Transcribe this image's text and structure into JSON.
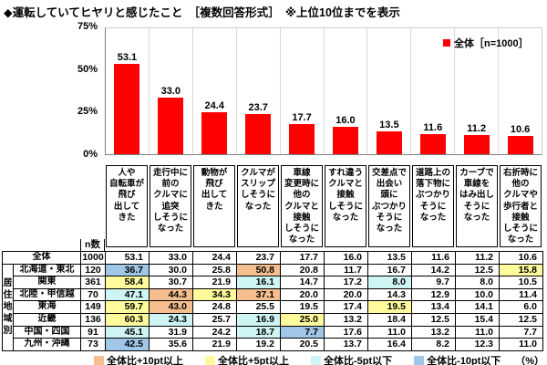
{
  "title": "◆運転していてヒヤリと感じたこと　［複数回答形式］　※上位10位までを表示",
  "chart_data": {
    "type": "bar",
    "title": "運転していてヒヤリと感じたこと ［複数回答形式］ 上位10位",
    "legend": "全体［n=1000］",
    "bar_color": "#ff0000",
    "ylim": [
      0,
      75
    ],
    "yticks": [
      {
        "label": "75%",
        "value": 75
      },
      {
        "label": "50%",
        "value": 50
      },
      {
        "label": "25%",
        "value": 25
      },
      {
        "label": "0%",
        "value": 0
      }
    ],
    "categories": [
      [
        "人や",
        "自転車が",
        "飛び",
        "出して",
        "きた"
      ],
      [
        "走行中に",
        "前の",
        "クルマに",
        "追突",
        "しそうに",
        "なった"
      ],
      [
        "動物が",
        "飛び",
        "出して",
        "きた"
      ],
      [
        "クルマが",
        "スリップ",
        "しそうに",
        "なった"
      ],
      [
        "車線",
        "変更時に",
        "他の",
        "クルマと",
        "接触",
        "しそうに",
        "なった"
      ],
      [
        "すれ違う",
        "クルマと",
        "接触",
        "しそうに",
        "なった"
      ],
      [
        "交差点で",
        "出会い",
        "頭に",
        "ぶつかり",
        "そうに",
        "なった"
      ],
      [
        "道路上の",
        "落下物に",
        "ぶつかり",
        "そうに",
        "なった"
      ],
      [
        "カーブで",
        "車線を",
        "はみ出し",
        "そうに",
        "なった"
      ],
      [
        "右折時に",
        "他の",
        "クルマや",
        "歩行者と",
        "接触",
        "しそうに",
        "なった"
      ]
    ],
    "values": [
      53.1,
      33.0,
      24.4,
      23.7,
      17.7,
      16.0,
      13.5,
      11.6,
      11.2,
      10.6
    ]
  },
  "table": {
    "n_header": "n数",
    "group_label": "居住地域別",
    "unit_label": "（%）",
    "rows": [
      {
        "label": "全体",
        "n": 1000,
        "values": [
          53.1,
          33.0,
          24.4,
          23.7,
          17.7,
          16.0,
          13.5,
          11.6,
          11.2,
          10.6
        ],
        "flags": [
          null,
          null,
          null,
          null,
          null,
          null,
          null,
          null,
          null,
          null
        ]
      },
      {
        "label": "北海道・東北",
        "n": 120,
        "values": [
          36.7,
          30.0,
          25.8,
          50.8,
          20.8,
          11.7,
          16.7,
          14.2,
          12.5,
          15.8
        ],
        "flags": [
          "minus10",
          null,
          null,
          "plus10",
          null,
          null,
          null,
          null,
          null,
          "plus5"
        ]
      },
      {
        "label": "関東",
        "n": 361,
        "values": [
          58.4,
          30.7,
          21.9,
          16.1,
          14.7,
          17.2,
          8.0,
          9.7,
          8.0,
          10.5
        ],
        "flags": [
          "plus5",
          null,
          null,
          "minus5",
          null,
          null,
          "minus5",
          null,
          null,
          null
        ]
      },
      {
        "label": "北陸・甲信越",
        "n": 70,
        "values": [
          47.1,
          44.3,
          34.3,
          37.1,
          20.0,
          20.0,
          14.3,
          12.9,
          10.0,
          11.4
        ],
        "flags": [
          "minus5",
          "plus10",
          "plus5",
          "plus10",
          null,
          null,
          null,
          null,
          null,
          null
        ]
      },
      {
        "label": "東海",
        "n": 149,
        "values": [
          59.7,
          43.0,
          24.8,
          25.5,
          19.5,
          17.4,
          19.5,
          13.4,
          14.1,
          6.0
        ],
        "flags": [
          "plus5",
          "plus10",
          null,
          null,
          null,
          null,
          "plus5",
          null,
          null,
          null
        ]
      },
      {
        "label": "近畿",
        "n": 136,
        "values": [
          60.3,
          24.3,
          25.7,
          16.9,
          25.0,
          13.2,
          18.4,
          12.5,
          15.4,
          12.5
        ],
        "flags": [
          "plus5",
          "minus5",
          null,
          "minus5",
          "plus5",
          null,
          null,
          null,
          null,
          null
        ]
      },
      {
        "label": "中国・四国",
        "n": 91,
        "values": [
          45.1,
          31.9,
          24.2,
          18.7,
          7.7,
          17.6,
          11.0,
          13.2,
          11.0,
          7.7
        ],
        "flags": [
          "minus5",
          null,
          null,
          "minus5",
          "minus10",
          null,
          null,
          null,
          null,
          null
        ]
      },
      {
        "label": "九州・沖縄",
        "n": 73,
        "values": [
          42.5,
          35.6,
          21.9,
          19.2,
          20.5,
          13.7,
          16.4,
          8.2,
          12.3,
          11.0
        ],
        "flags": [
          "minus10",
          null,
          null,
          null,
          null,
          null,
          null,
          null,
          null,
          null
        ]
      }
    ]
  },
  "comparison_legend": [
    {
      "key": "plus10",
      "label": "全体比+10pt以上",
      "color": "#f5be8e"
    },
    {
      "key": "plus5",
      "label": "全体比+5pt以上",
      "color": "#fffb9d"
    },
    {
      "key": "minus5",
      "label": "全体比-5pt以下",
      "color": "#cef4f4"
    },
    {
      "key": "minus10",
      "label": "全体比-10pt以下",
      "color": "#a0c6e8"
    }
  ]
}
